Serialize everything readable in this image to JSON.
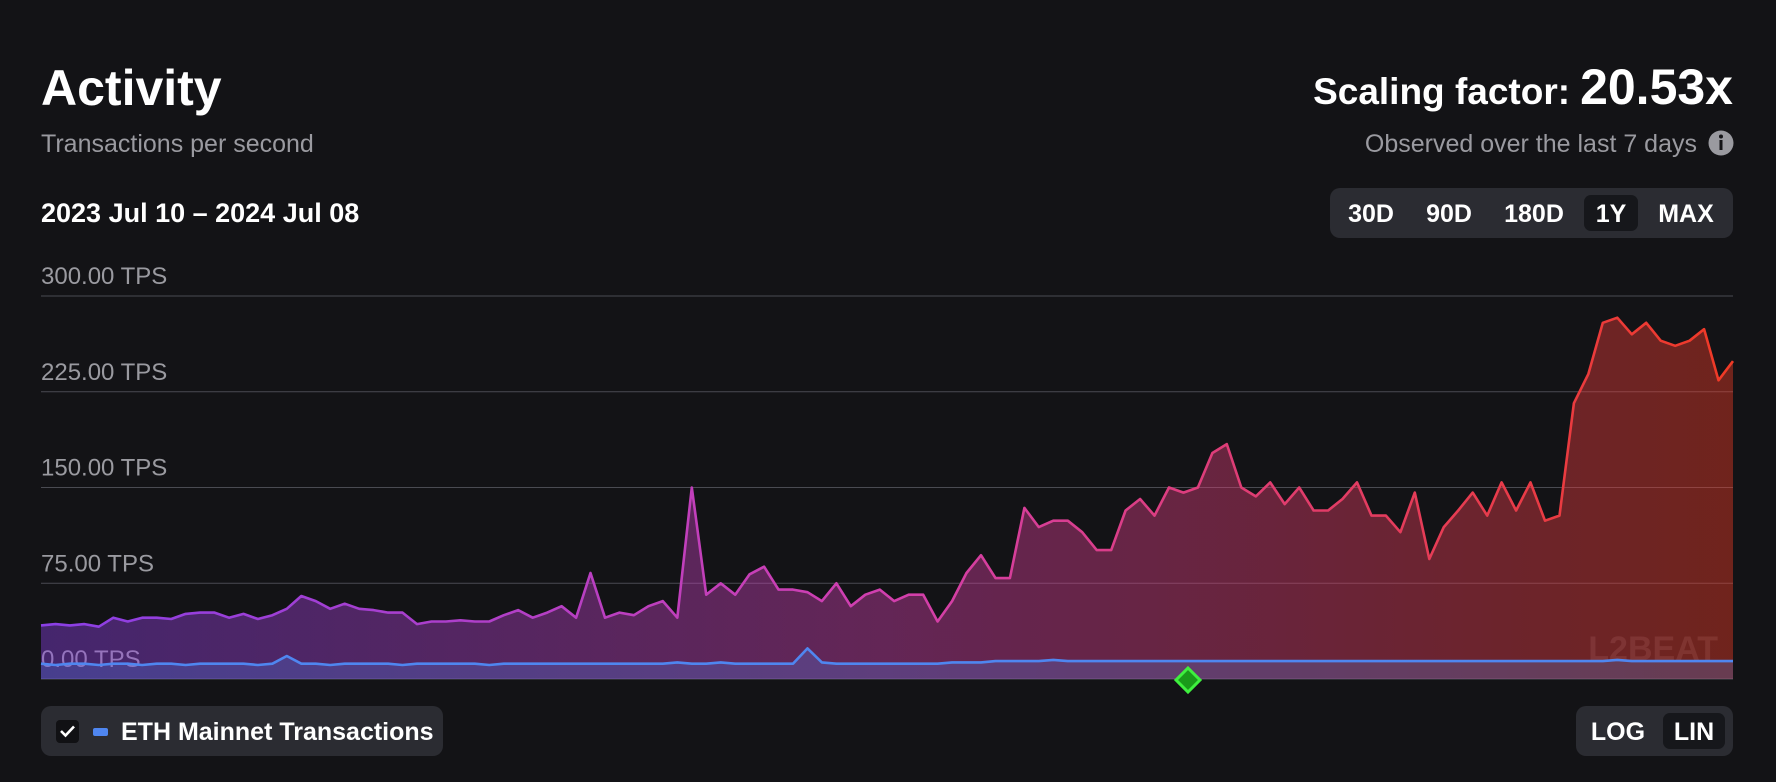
{
  "header": {
    "title": "Activity",
    "subtitle": "Transactions per second",
    "scaling_label": "Scaling factor:",
    "scaling_value": "20.53x",
    "observed": "Observed over the last 7 days"
  },
  "date_range": "2023 Jul 10 – 2024 Jul 08",
  "range_buttons": [
    "30D",
    "90D",
    "180D",
    "1Y",
    "MAX"
  ],
  "selected_range": 3,
  "scale_buttons": [
    "LOG",
    "LIN"
  ],
  "selected_scale": 1,
  "watermark": "L2BEAT",
  "chart_data": {
    "type": "area",
    "series": [
      {
        "colors": [
          "#8a3fe6",
          "#d23fae",
          "#f03a25"
        ],
        "values": [
          42,
          43,
          42,
          43,
          41,
          48,
          45,
          48,
          48,
          47,
          51,
          52,
          52,
          48,
          51,
          47,
          50,
          55,
          65,
          61,
          55,
          59,
          55,
          54,
          52,
          52,
          43,
          45,
          45,
          46,
          45,
          45,
          50,
          54,
          48,
          52,
          57,
          48,
          83,
          48,
          52,
          50,
          57,
          61,
          48,
          150,
          66,
          75,
          66,
          82,
          88,
          70,
          70,
          68,
          61,
          75,
          57,
          66,
          70,
          61,
          66,
          66,
          45,
          61,
          83,
          97,
          79,
          79,
          134,
          119,
          124,
          124,
          115,
          101,
          101,
          132,
          141,
          128,
          150,
          146,
          150,
          177,
          184,
          150,
          143,
          154,
          137,
          150,
          132,
          132,
          141,
          154,
          128,
          128,
          115,
          146,
          94,
          119,
          132,
          146,
          128,
          154,
          132,
          154,
          124,
          128,
          216,
          239,
          279,
          283,
          270,
          279,
          265,
          261,
          265,
          274,
          234,
          249
        ]
      },
      {
        "name": "ETH Mainnet Transactions",
        "color": "#4f86f0",
        "values": [
          12,
          11,
          12,
          12,
          11,
          12,
          12,
          11,
          12,
          12,
          11,
          12,
          12,
          12,
          12,
          11,
          12,
          18,
          12,
          12,
          11,
          12,
          12,
          12,
          12,
          11,
          12,
          12,
          12,
          12,
          12,
          11,
          12,
          12,
          12,
          12,
          12,
          12,
          12,
          12,
          12,
          12,
          12,
          12,
          13,
          12,
          12,
          13,
          12,
          12,
          12,
          12,
          12,
          24,
          13,
          12,
          12,
          12,
          12,
          12,
          12,
          12,
          12,
          13,
          13,
          13,
          14,
          14,
          14,
          14,
          15,
          14,
          14,
          14,
          14,
          14,
          14,
          14,
          14,
          14,
          14,
          14,
          14,
          14,
          14,
          14,
          14,
          14,
          14,
          14,
          14,
          14,
          14,
          14,
          14,
          14,
          14,
          14,
          14,
          14,
          14,
          14,
          14,
          14,
          14,
          14,
          14,
          14,
          14,
          15,
          14,
          14,
          14,
          14,
          14,
          14,
          14,
          14
        ]
      }
    ],
    "ylim": [
      0,
      300
    ],
    "yticks": [
      {
        "value": 0,
        "label": "0.00 TPS"
      },
      {
        "value": 75,
        "label": "75.00 TPS"
      },
      {
        "value": 150,
        "label": "150.00 TPS"
      },
      {
        "value": 225,
        "label": "225.00 TPS"
      },
      {
        "value": 300,
        "label": "300.00 TPS"
      }
    ],
    "grid": true,
    "log_scale": false
  }
}
